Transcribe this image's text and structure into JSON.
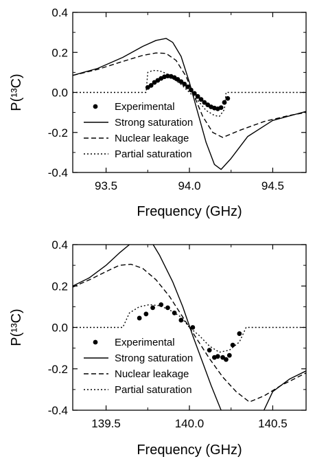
{
  "chart_data": [
    {
      "type": "line",
      "xlabel": "Frequency (GHz)",
      "ylabel": "P(¹³C)",
      "xlim": [
        93.3,
        94.7
      ],
      "ylim": [
        -0.4,
        0.4
      ],
      "xticks": [
        "93.5",
        "94.0",
        "94.5"
      ],
      "xtick_values": [
        93.5,
        94.0,
        94.5
      ],
      "yticks": [
        "0.4",
        "0.2",
        "0.0",
        "-0.2",
        "-0.4"
      ],
      "ytick_values": [
        0.4,
        0.2,
        0.0,
        -0.2,
        -0.4
      ],
      "legend_position": "lower-left",
      "legend": [
        "Experimental",
        "Strong saturation",
        "Nuclear leakage",
        "Partial saturation"
      ],
      "series": [
        {
          "name": "Experimental",
          "style": "markers",
          "x": [
            93.75,
            93.77,
            93.79,
            93.81,
            93.83,
            93.85,
            93.87,
            93.89,
            93.91,
            93.93,
            93.95,
            93.97,
            93.99,
            94.01,
            94.03,
            94.05,
            94.07,
            94.09,
            94.11,
            94.13,
            94.15,
            94.17,
            94.19,
            94.21,
            94.23
          ],
          "y": [
            0.025,
            0.035,
            0.05,
            0.06,
            0.07,
            0.078,
            0.082,
            0.08,
            0.074,
            0.065,
            0.054,
            0.042,
            0.028,
            0.012,
            -0.005,
            -0.02,
            -0.035,
            -0.05,
            -0.062,
            -0.072,
            -0.078,
            -0.082,
            -0.076,
            -0.05,
            -0.03
          ]
        },
        {
          "name": "Strong saturation",
          "style": "solid",
          "x": [
            93.3,
            93.45,
            93.6,
            93.72,
            93.8,
            93.86,
            93.9,
            93.95,
            94.0,
            94.05,
            94.1,
            94.15,
            94.19,
            94.25,
            94.35,
            94.5,
            94.7
          ],
          "y": [
            0.085,
            0.12,
            0.175,
            0.23,
            0.26,
            0.27,
            0.25,
            0.18,
            0.05,
            -0.1,
            -0.25,
            -0.36,
            -0.385,
            -0.33,
            -0.22,
            -0.14,
            -0.095
          ]
        },
        {
          "name": "Nuclear leakage",
          "style": "dashed",
          "x": [
            93.3,
            93.45,
            93.6,
            93.72,
            93.8,
            93.86,
            93.92,
            93.98,
            94.03,
            94.08,
            94.14,
            94.2,
            94.3,
            94.45,
            94.6,
            94.7
          ],
          "y": [
            0.085,
            0.115,
            0.155,
            0.185,
            0.197,
            0.195,
            0.16,
            0.08,
            -0.02,
            -0.12,
            -0.2,
            -0.225,
            -0.19,
            -0.145,
            -0.115,
            -0.1
          ]
        },
        {
          "name": "Partial saturation",
          "style": "dotted",
          "x": [
            93.3,
            93.74,
            93.75,
            93.78,
            93.82,
            93.86,
            93.9,
            93.95,
            94.0,
            94.05,
            94.1,
            94.15,
            94.18,
            94.21,
            94.22,
            94.7
          ],
          "y": [
            0.0,
            0.0,
            0.1,
            0.11,
            0.108,
            0.095,
            0.07,
            0.04,
            0.0,
            -0.04,
            -0.09,
            -0.115,
            -0.12,
            -0.085,
            0.0,
            0.0
          ]
        }
      ]
    },
    {
      "type": "line",
      "xlabel": "Frequency (GHz)",
      "ylabel": "P(¹³C)",
      "xlim": [
        139.3,
        140.7
      ],
      "ylim": [
        -0.4,
        0.4
      ],
      "xticks": [
        "139.5",
        "140.0",
        "140.5"
      ],
      "xtick_values": [
        139.5,
        140.0,
        140.5
      ],
      "yticks": [
        "0.4",
        "0.2",
        "0.0",
        "-0.2",
        "-0.4"
      ],
      "ytick_values": [
        0.4,
        0.2,
        0.0,
        -0.2,
        -0.4
      ],
      "legend_position": "lower-left",
      "legend": [
        "Experimental",
        "Strong saturation",
        "Nuclear leakage",
        "Partial saturation"
      ],
      "series": [
        {
          "name": "Experimental",
          "style": "markers",
          "x": [
            139.7,
            139.74,
            139.78,
            139.83,
            139.87,
            139.91,
            139.95,
            140.02,
            140.12,
            140.15,
            140.17,
            140.2,
            140.22,
            140.24,
            140.26,
            140.3
          ],
          "y": [
            0.045,
            0.065,
            0.095,
            0.11,
            0.095,
            0.07,
            0.035,
            0.0,
            -0.11,
            -0.145,
            -0.14,
            -0.145,
            -0.155,
            -0.135,
            -0.085,
            -0.03
          ]
        },
        {
          "name": "Strong saturation",
          "style": "solid",
          "x": [
            139.3,
            139.4,
            139.5,
            139.58,
            139.64,
            139.7,
            139.76,
            139.82,
            139.9,
            139.96,
            140.02,
            140.08,
            140.13,
            140.17,
            140.2,
            140.43,
            140.5,
            140.6,
            140.7
          ],
          "y": [
            0.2,
            0.24,
            0.3,
            0.36,
            0.4,
            0.44,
            0.43,
            0.35,
            0.22,
            0.1,
            -0.04,
            -0.17,
            -0.28,
            -0.36,
            -0.42,
            -0.43,
            -0.31,
            -0.25,
            -0.21
          ]
        },
        {
          "name": "Nuclear leakage",
          "style": "dashed",
          "x": [
            139.3,
            139.4,
            139.5,
            139.58,
            139.65,
            139.72,
            139.8,
            139.88,
            139.96,
            140.04,
            140.12,
            140.2,
            140.28,
            140.36,
            140.45,
            140.55,
            140.7
          ],
          "y": [
            0.195,
            0.23,
            0.27,
            0.3,
            0.305,
            0.285,
            0.23,
            0.15,
            0.05,
            -0.05,
            -0.15,
            -0.24,
            -0.31,
            -0.36,
            -0.33,
            -0.28,
            -0.22
          ]
        },
        {
          "name": "Partial saturation",
          "style": "dotted",
          "x": [
            139.3,
            139.6,
            139.64,
            139.7,
            139.76,
            139.82,
            139.88,
            139.95,
            140.0,
            140.06,
            140.12,
            140.18,
            140.24,
            140.3,
            140.34,
            140.7
          ],
          "y": [
            0.0,
            0.0,
            0.07,
            0.1,
            0.11,
            0.105,
            0.085,
            0.05,
            0.0,
            -0.04,
            -0.09,
            -0.12,
            -0.11,
            -0.07,
            0.0,
            0.0
          ]
        }
      ]
    }
  ]
}
